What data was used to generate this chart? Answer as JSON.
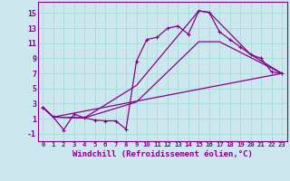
{
  "bg_color": "#cce8ee",
  "line_color": "#880088",
  "grid_color": "#aadddd",
  "xlabel": "Windchill (Refroidissement éolien,°C)",
  "xlabel_fontsize": 6.5,
  "tick_fontsize": 5.2,
  "ytick_fontsize": 6.0,
  "xlim": [
    -0.5,
    23.5
  ],
  "ylim": [
    -2.0,
    16.5
  ],
  "yticks": [
    -1,
    1,
    3,
    5,
    7,
    9,
    11,
    13,
    15
  ],
  "xticks": [
    0,
    1,
    2,
    3,
    4,
    5,
    6,
    7,
    8,
    9,
    10,
    11,
    12,
    13,
    14,
    15,
    16,
    17,
    18,
    19,
    20,
    21,
    22,
    23
  ],
  "curve1_x": [
    0,
    1,
    2,
    3,
    4,
    5,
    6,
    7,
    8,
    9,
    10,
    11,
    12,
    13,
    14,
    15,
    16,
    17,
    18,
    19,
    20,
    21,
    22,
    23
  ],
  "curve1_y": [
    2.5,
    1.2,
    -0.5,
    1.6,
    1.1,
    0.8,
    0.7,
    0.7,
    -0.4,
    8.6,
    11.5,
    11.8,
    13.0,
    13.3,
    12.2,
    15.3,
    15.1,
    12.5,
    11.5,
    10.5,
    9.5,
    9.0,
    7.2,
    7.0
  ],
  "curve2_x": [
    0,
    1,
    4,
    9,
    15,
    16,
    20,
    23
  ],
  "curve2_y": [
    2.5,
    1.2,
    1.1,
    5.4,
    15.3,
    15.1,
    9.5,
    7.0
  ],
  "curve3_x": [
    0,
    1,
    4,
    9,
    15,
    17,
    23
  ],
  "curve3_y": [
    2.5,
    1.2,
    1.1,
    3.2,
    11.2,
    11.2,
    7.0
  ],
  "curve4_x": [
    0,
    1,
    23
  ],
  "curve4_y": [
    2.5,
    1.2,
    7.0
  ]
}
